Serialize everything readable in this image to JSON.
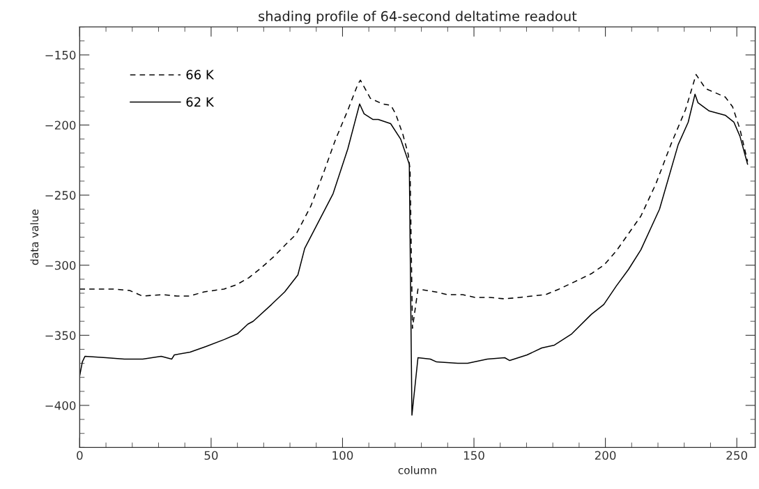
{
  "chart_data": {
    "type": "line",
    "title": "shading profile of 64-second deltatime readout",
    "xlabel": "column",
    "ylabel": "data value",
    "xlim": [
      0,
      257
    ],
    "ylim": [
      -430,
      -130
    ],
    "xticks": [
      0,
      50,
      100,
      150,
      200,
      250
    ],
    "yticks": [
      -400,
      -350,
      -300,
      -250,
      -200,
      -150
    ],
    "grid": false,
    "legend": "top left",
    "series": [
      {
        "name": "66 K",
        "color": "#000000",
        "line_style": "dashed",
        "x": [
          0,
          7.7,
          12.9,
          19,
          23.8,
          31.3,
          37,
          41.7,
          47.4,
          54.9,
          59.6,
          64.3,
          69,
          73.8,
          78.5,
          82.3,
          87.9,
          92.6,
          97.4,
          102.1,
          105.8,
          106.8,
          110.6,
          115.3,
          118.4,
          120.2,
          123,
          125,
          125.7,
          126.6,
          128.7,
          135.3,
          140,
          145.7,
          150.4,
          156.1,
          161.7,
          167.4,
          172.1,
          177.3,
          182.4,
          188.1,
          194.7,
          199.4,
          204.1,
          213.5,
          219.2,
          224.9,
          230.5,
          234.5,
          238.1,
          241.8,
          245.6,
          248.4,
          251.2,
          254.1
        ],
        "values": [
          -317,
          -317,
          -317,
          -318,
          -322,
          -321,
          -322,
          -322,
          -319,
          -317,
          -314,
          -309,
          -302,
          -294,
          -285,
          -278,
          -258,
          -235,
          -210,
          -189,
          -171,
          -168,
          -181,
          -185,
          -186,
          -192,
          -207,
          -221,
          -232,
          -345,
          -317,
          -319,
          -321,
          -321,
          -323,
          -323,
          -324,
          -323,
          -322,
          -321,
          -317,
          -312,
          -306,
          -300,
          -290,
          -265,
          -242,
          -214,
          -189,
          -164,
          -174,
          -177,
          -180,
          -187,
          -203,
          -226
        ]
      },
      {
        "name": "62 K",
        "color": "#000000",
        "line_style": "solid",
        "x": [
          0,
          1,
          2,
          10,
          17,
          24,
          31,
          35,
          36,
          42,
          48,
          55,
          60,
          64,
          66,
          73,
          78,
          83,
          85.6,
          96.4,
          102,
          106.5,
          108.2,
          111.5,
          113.6,
          118.3,
          122.1,
          125.4,
          126.4,
          128.7,
          133.4,
          135.8,
          143.8,
          147.6,
          155.1,
          161.7,
          163.6,
          170.2,
          175.8,
          180.6,
          187.2,
          194.7,
          199.4,
          204.1,
          208.8,
          213.5,
          220.6,
          227.7,
          231.5,
          234.1,
          235.2,
          239.5,
          245.6,
          248.9,
          251.2,
          254.1
        ],
        "values": [
          -379,
          -369,
          -365,
          -366,
          -367,
          -367,
          -365,
          -367,
          -364,
          -362,
          -358,
          -353,
          -349,
          -342,
          -340,
          -328,
          -319,
          -307,
          -288,
          -249,
          -217,
          -185,
          -192,
          -196,
          -196,
          -199,
          -210,
          -228,
          -407,
          -366,
          -367,
          -369,
          -370,
          -370,
          -367,
          -366,
          -368,
          -364,
          -359,
          -357,
          -349,
          -335,
          -328,
          -315,
          -303,
          -289,
          -260,
          -214,
          -198,
          -178,
          -184,
          -190,
          -193,
          -198,
          -208,
          -228
        ]
      }
    ]
  }
}
